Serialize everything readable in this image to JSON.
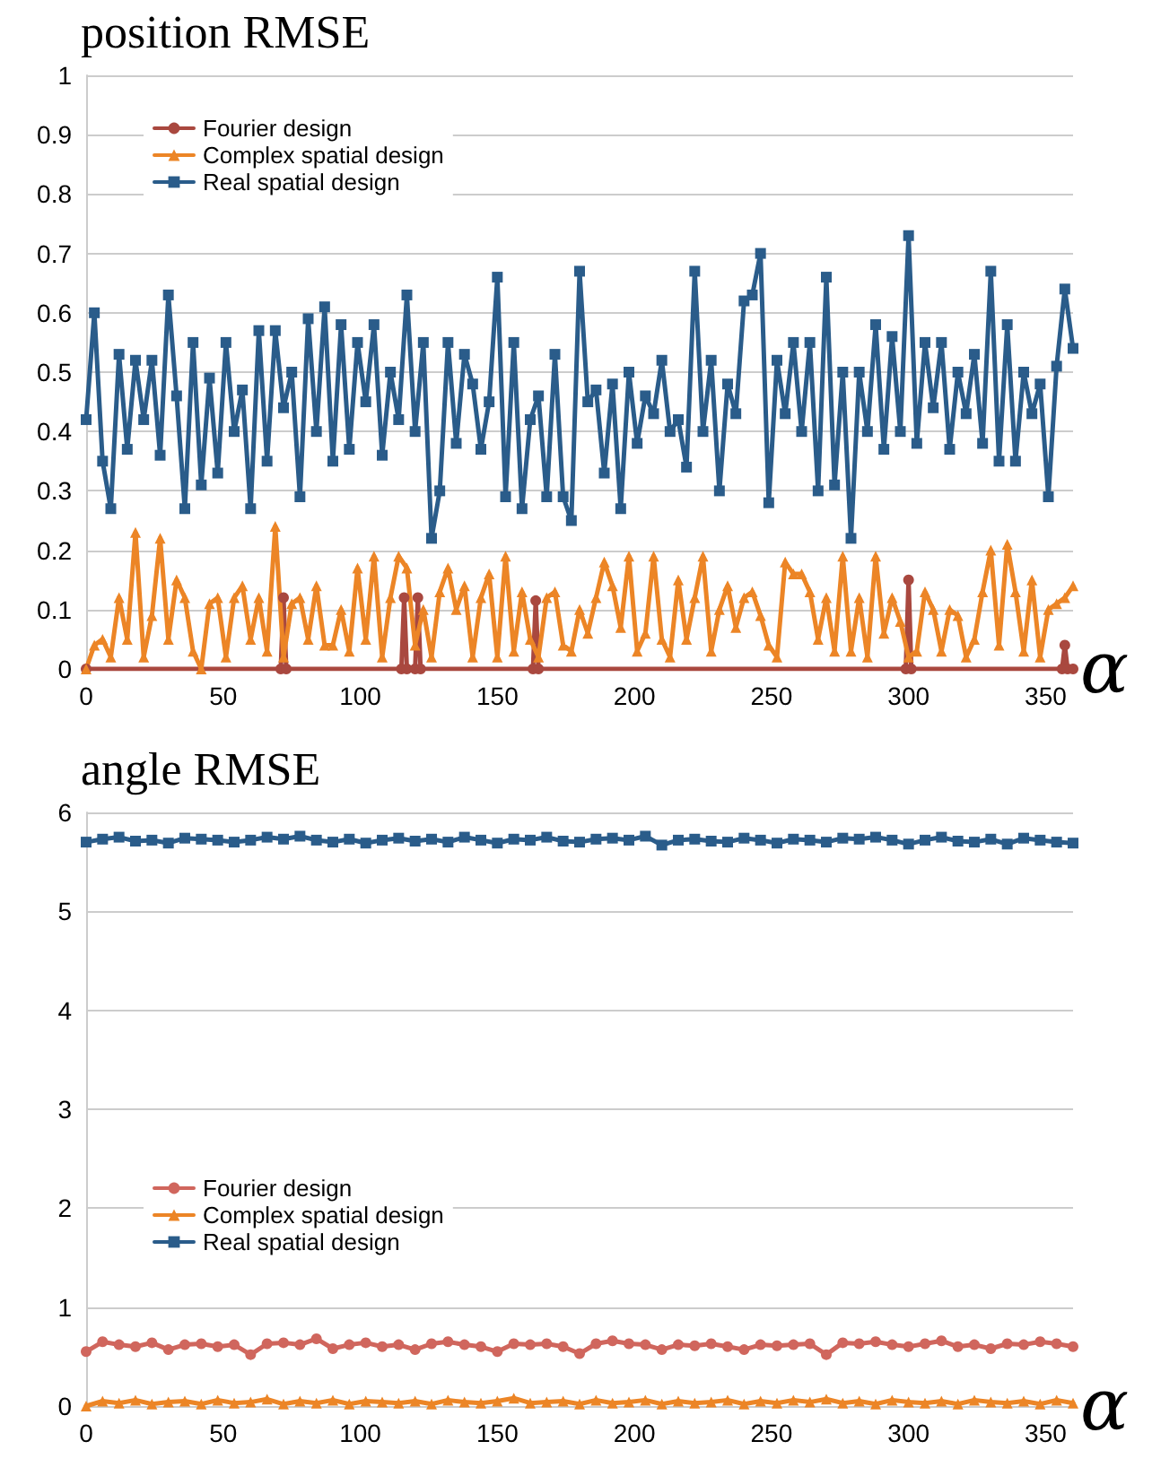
{
  "chart_data": [
    {
      "type": "line",
      "title": "position RMSE",
      "xlabel": "α",
      "xlim": [
        0,
        360
      ],
      "xticks": [
        0,
        50,
        100,
        150,
        200,
        250,
        300,
        350
      ],
      "ylim": [
        0,
        1
      ],
      "yticks": [
        0,
        0.1,
        0.2,
        0.3,
        0.4,
        0.5,
        0.6,
        0.7,
        0.8,
        0.9,
        1
      ],
      "grid": "y",
      "legend": "top left",
      "line_style": "solid",
      "series": [
        {
          "name": "Fourier design",
          "color": "#a9483f",
          "marker": "circle",
          "x": [
            0,
            71,
            72,
            73,
            115,
            116,
            117,
            120,
            121,
            122,
            163,
            164,
            165,
            299,
            300,
            301,
            356,
            357,
            358,
            360
          ],
          "values": [
            0,
            0,
            0.12,
            0,
            0,
            0.12,
            0,
            0,
            0.12,
            0,
            0,
            0.115,
            0,
            0,
            0.15,
            0,
            0,
            0.04,
            0,
            0
          ]
        },
        {
          "name": "Complex spatial design",
          "color": "#ec8526",
          "marker": "triangle",
          "x": [
            0,
            3,
            6,
            9,
            12,
            15,
            18,
            21,
            24,
            27,
            30,
            33,
            36,
            39,
            42,
            45,
            48,
            51,
            54,
            57,
            60,
            63,
            66,
            69,
            72,
            75,
            78,
            81,
            84,
            87,
            90,
            93,
            96,
            99,
            102,
            105,
            108,
            111,
            114,
            117,
            120,
            123,
            126,
            129,
            132,
            135,
            138,
            141,
            144,
            147,
            150,
            153,
            156,
            159,
            162,
            165,
            168,
            171,
            174,
            177,
            180,
            183,
            186,
            189,
            192,
            195,
            198,
            201,
            204,
            207,
            210,
            213,
            216,
            219,
            222,
            225,
            228,
            231,
            234,
            237,
            240,
            243,
            246,
            249,
            252,
            255,
            258,
            261,
            264,
            267,
            270,
            273,
            276,
            279,
            282,
            285,
            288,
            291,
            294,
            297,
            300,
            303,
            306,
            309,
            312,
            315,
            318,
            321,
            324,
            327,
            330,
            333,
            336,
            339,
            342,
            345,
            348,
            351,
            354,
            357,
            360
          ],
          "values": [
            0,
            0.04,
            0.05,
            0.02,
            0.12,
            0.05,
            0.23,
            0.02,
            0.09,
            0.22,
            0.05,
            0.15,
            0.12,
            0.03,
            0,
            0.11,
            0.12,
            0.02,
            0.12,
            0.14,
            0.05,
            0.12,
            0.03,
            0.24,
            0.02,
            0.11,
            0.12,
            0.05,
            0.14,
            0.04,
            0.04,
            0.1,
            0.03,
            0.17,
            0.05,
            0.19,
            0.02,
            0.12,
            0.19,
            0.17,
            0.04,
            0.1,
            0.02,
            0.13,
            0.17,
            0.1,
            0.14,
            0.02,
            0.12,
            0.16,
            0.02,
            0.19,
            0.03,
            0.13,
            0.05,
            0.02,
            0.12,
            0.13,
            0.04,
            0.03,
            0.1,
            0.06,
            0.12,
            0.18,
            0.14,
            0.07,
            0.19,
            0.03,
            0.06,
            0.19,
            0.05,
            0.02,
            0.15,
            0.05,
            0.12,
            0.19,
            0.03,
            0.1,
            0.14,
            0.07,
            0.12,
            0.13,
            0.09,
            0.04,
            0.02,
            0.18,
            0.16,
            0.16,
            0.13,
            0.05,
            0.12,
            0.03,
            0.19,
            0.03,
            0.12,
            0.02,
            0.19,
            0.06,
            0.12,
            0.08,
            0.02,
            0.03,
            0.13,
            0.1,
            0.03,
            0.1,
            0.09,
            0.02,
            0.05,
            0.13,
            0.2,
            0.04,
            0.21,
            0.13,
            0.03,
            0.15,
            0.02,
            0.1,
            0.11,
            0.12,
            0.14
          ]
        },
        {
          "name": "Real spatial design",
          "color": "#2a5c8a",
          "marker": "square",
          "x": [
            0,
            3,
            6,
            9,
            12,
            15,
            18,
            21,
            24,
            27,
            30,
            33,
            36,
            39,
            42,
            45,
            48,
            51,
            54,
            57,
            60,
            63,
            66,
            69,
            72,
            75,
            78,
            81,
            84,
            87,
            90,
            93,
            96,
            99,
            102,
            105,
            108,
            111,
            114,
            117,
            120,
            123,
            126,
            129,
            132,
            135,
            138,
            141,
            144,
            147,
            150,
            153,
            156,
            159,
            162,
            165,
            168,
            171,
            174,
            177,
            180,
            183,
            186,
            189,
            192,
            195,
            198,
            201,
            204,
            207,
            210,
            213,
            216,
            219,
            222,
            225,
            228,
            231,
            234,
            237,
            240,
            243,
            246,
            249,
            252,
            255,
            258,
            261,
            264,
            267,
            270,
            273,
            276,
            279,
            282,
            285,
            288,
            291,
            294,
            297,
            300,
            303,
            306,
            309,
            312,
            315,
            318,
            321,
            324,
            327,
            330,
            333,
            336,
            339,
            342,
            345,
            348,
            351,
            354,
            357,
            360
          ],
          "values": [
            0.42,
            0.6,
            0.35,
            0.27,
            0.53,
            0.37,
            0.52,
            0.42,
            0.52,
            0.36,
            0.63,
            0.46,
            0.27,
            0.55,
            0.31,
            0.49,
            0.33,
            0.55,
            0.4,
            0.47,
            0.27,
            0.57,
            0.35,
            0.57,
            0.44,
            0.5,
            0.29,
            0.59,
            0.4,
            0.61,
            0.35,
            0.58,
            0.37,
            0.55,
            0.45,
            0.58,
            0.36,
            0.5,
            0.42,
            0.63,
            0.4,
            0.55,
            0.22,
            0.3,
            0.55,
            0.38,
            0.53,
            0.48,
            0.37,
            0.45,
            0.66,
            0.29,
            0.55,
            0.27,
            0.42,
            0.46,
            0.29,
            0.53,
            0.29,
            0.25,
            0.67,
            0.45,
            0.47,
            0.33,
            0.48,
            0.27,
            0.5,
            0.38,
            0.46,
            0.43,
            0.52,
            0.4,
            0.42,
            0.34,
            0.67,
            0.4,
            0.52,
            0.3,
            0.48,
            0.43,
            0.62,
            0.63,
            0.7,
            0.28,
            0.52,
            0.43,
            0.55,
            0.4,
            0.55,
            0.3,
            0.66,
            0.31,
            0.5,
            0.22,
            0.5,
            0.4,
            0.58,
            0.37,
            0.56,
            0.4,
            0.73,
            0.38,
            0.55,
            0.44,
            0.55,
            0.37,
            0.5,
            0.43,
            0.53,
            0.38,
            0.67,
            0.35,
            0.58,
            0.35,
            0.5,
            0.43,
            0.48,
            0.29,
            0.51,
            0.64,
            0.54
          ]
        }
      ]
    },
    {
      "type": "line",
      "title": "angle RMSE",
      "xlabel": "α",
      "xlim": [
        0,
        360
      ],
      "xticks": [
        0,
        50,
        100,
        150,
        200,
        250,
        300,
        350
      ],
      "ylim": [
        0,
        6
      ],
      "yticks": [
        0,
        1,
        2,
        3,
        4,
        5,
        6
      ],
      "grid": "y",
      "legend": "left",
      "line_style": "solid",
      "series": [
        {
          "name": "Fourier design",
          "color": "#d0665d",
          "marker": "circle",
          "x": [
            0,
            6,
            12,
            18,
            24,
            30,
            36,
            42,
            48,
            54,
            60,
            66,
            72,
            78,
            84,
            90,
            96,
            102,
            108,
            114,
            120,
            126,
            132,
            138,
            144,
            150,
            156,
            162,
            168,
            174,
            180,
            186,
            192,
            198,
            204,
            210,
            216,
            222,
            228,
            234,
            240,
            246,
            252,
            258,
            264,
            270,
            276,
            282,
            288,
            294,
            300,
            306,
            312,
            318,
            324,
            330,
            336,
            342,
            348,
            354,
            360
          ],
          "values": [
            0.55,
            0.65,
            0.62,
            0.6,
            0.64,
            0.57,
            0.62,
            0.63,
            0.6,
            0.62,
            0.52,
            0.63,
            0.64,
            0.62,
            0.68,
            0.58,
            0.62,
            0.64,
            0.6,
            0.62,
            0.57,
            0.63,
            0.65,
            0.62,
            0.6,
            0.55,
            0.63,
            0.62,
            0.63,
            0.6,
            0.53,
            0.63,
            0.66,
            0.63,
            0.62,
            0.57,
            0.62,
            0.61,
            0.63,
            0.6,
            0.57,
            0.62,
            0.61,
            0.62,
            0.63,
            0.52,
            0.64,
            0.63,
            0.65,
            0.62,
            0.6,
            0.63,
            0.66,
            0.6,
            0.62,
            0.58,
            0.63,
            0.62,
            0.65,
            0.63,
            0.6
          ]
        },
        {
          "name": "Complex spatial design",
          "color": "#ec8526",
          "marker": "triangle",
          "x": [
            0,
            6,
            12,
            18,
            24,
            30,
            36,
            42,
            48,
            54,
            60,
            66,
            72,
            78,
            84,
            90,
            96,
            102,
            108,
            114,
            120,
            126,
            132,
            138,
            144,
            150,
            156,
            162,
            168,
            174,
            180,
            186,
            192,
            198,
            204,
            210,
            216,
            222,
            228,
            234,
            240,
            246,
            252,
            258,
            264,
            270,
            276,
            282,
            288,
            294,
            300,
            306,
            312,
            318,
            324,
            330,
            336,
            342,
            348,
            354,
            360
          ],
          "values": [
            0,
            0.05,
            0.03,
            0.06,
            0.02,
            0.04,
            0.05,
            0.02,
            0.06,
            0.03,
            0.04,
            0.07,
            0.02,
            0.05,
            0.03,
            0.06,
            0.02,
            0.05,
            0.04,
            0.03,
            0.05,
            0.02,
            0.06,
            0.04,
            0.03,
            0.05,
            0.08,
            0.03,
            0.04,
            0.05,
            0.02,
            0.06,
            0.03,
            0.04,
            0.06,
            0.02,
            0.05,
            0.03,
            0.04,
            0.06,
            0.02,
            0.05,
            0.03,
            0.06,
            0.04,
            0.07,
            0.03,
            0.05,
            0.02,
            0.06,
            0.04,
            0.03,
            0.05,
            0.02,
            0.06,
            0.04,
            0.03,
            0.05,
            0.02,
            0.06,
            0.03
          ]
        },
        {
          "name": "Real spatial design",
          "color": "#2a5c8a",
          "marker": "square",
          "x": [
            0,
            6,
            12,
            18,
            24,
            30,
            36,
            42,
            48,
            54,
            60,
            66,
            72,
            78,
            84,
            90,
            96,
            102,
            108,
            114,
            120,
            126,
            132,
            138,
            144,
            150,
            156,
            162,
            168,
            174,
            180,
            186,
            192,
            198,
            204,
            210,
            216,
            222,
            228,
            234,
            240,
            246,
            252,
            258,
            264,
            270,
            276,
            282,
            288,
            294,
            300,
            306,
            312,
            318,
            324,
            330,
            336,
            342,
            348,
            354,
            360
          ],
          "values": [
            5.7,
            5.73,
            5.75,
            5.71,
            5.72,
            5.69,
            5.74,
            5.73,
            5.72,
            5.7,
            5.72,
            5.75,
            5.73,
            5.76,
            5.72,
            5.7,
            5.73,
            5.69,
            5.72,
            5.74,
            5.71,
            5.73,
            5.7,
            5.75,
            5.72,
            5.69,
            5.73,
            5.72,
            5.75,
            5.71,
            5.7,
            5.73,
            5.74,
            5.72,
            5.76,
            5.67,
            5.72,
            5.73,
            5.71,
            5.7,
            5.74,
            5.72,
            5.69,
            5.73,
            5.72,
            5.7,
            5.74,
            5.73,
            5.75,
            5.72,
            5.68,
            5.72,
            5.75,
            5.71,
            5.7,
            5.73,
            5.68,
            5.74,
            5.72,
            5.7,
            5.69
          ]
        }
      ]
    }
  ]
}
